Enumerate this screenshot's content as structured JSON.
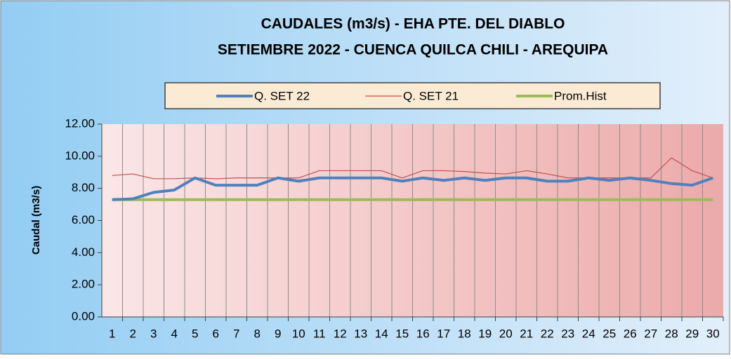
{
  "chart_data": {
    "type": "line",
    "title": "CAUDALES (m3/s) - EHA PTE. DEL DIABLO",
    "subtitle": "SETIEMBRE 2022 -  CUENCA QUILCA CHILI - AREQUIPA",
    "y_label": "Caudal  (m3/s)",
    "categories": [
      "1",
      "2",
      "3",
      "4",
      "5",
      "6",
      "7",
      "8",
      "9",
      "10",
      "11",
      "12",
      "13",
      "14",
      "15",
      "16",
      "17",
      "18",
      "19",
      "20",
      "21",
      "22",
      "23",
      "24",
      "25",
      "26",
      "27",
      "28",
      "29",
      "30"
    ],
    "series": [
      {
        "name": "Q. SET 22",
        "color": "#4f81bd",
        "width": 4,
        "values": [
          7.3,
          7.35,
          7.75,
          7.9,
          8.65,
          8.2,
          8.2,
          8.2,
          8.65,
          8.45,
          8.65,
          8.65,
          8.65,
          8.65,
          8.45,
          8.65,
          8.5,
          8.65,
          8.5,
          8.65,
          8.65,
          8.45,
          8.45,
          8.65,
          8.5,
          8.65,
          8.5,
          8.3,
          8.2,
          8.65
        ]
      },
      {
        "name": "Q. SET 21",
        "color": "#c0504d",
        "width": 1.2,
        "values": [
          8.8,
          8.9,
          8.6,
          8.6,
          8.65,
          8.6,
          8.65,
          8.65,
          8.65,
          8.65,
          9.1,
          9.1,
          9.1,
          9.1,
          8.65,
          9.1,
          9.1,
          9.05,
          8.95,
          8.9,
          9.1,
          8.9,
          8.65,
          8.65,
          8.65,
          8.65,
          8.65,
          9.9,
          9.1,
          8.65
        ]
      },
      {
        "name": "Prom.Hist",
        "color": "#9bbb59",
        "width": 4,
        "values": [
          7.3,
          7.3,
          7.3,
          7.3,
          7.3,
          7.3,
          7.3,
          7.3,
          7.3,
          7.3,
          7.3,
          7.3,
          7.3,
          7.3,
          7.3,
          7.3,
          7.3,
          7.3,
          7.3,
          7.3,
          7.3,
          7.3,
          7.3,
          7.3,
          7.3,
          7.3,
          7.3,
          7.3,
          7.3,
          7.3
        ]
      }
    ],
    "ylim": [
      0,
      12
    ],
    "yticks": [
      {
        "value": 0,
        "label": "0.00"
      },
      {
        "value": 2,
        "label": "2.00"
      },
      {
        "value": 4,
        "label": "4.00"
      },
      {
        "value": 6,
        "label": "6.00"
      },
      {
        "value": 8,
        "label": "8.00"
      },
      {
        "value": 10,
        "label": "10.00"
      },
      {
        "value": 12,
        "label": "12.00"
      }
    ],
    "legend": "top"
  }
}
